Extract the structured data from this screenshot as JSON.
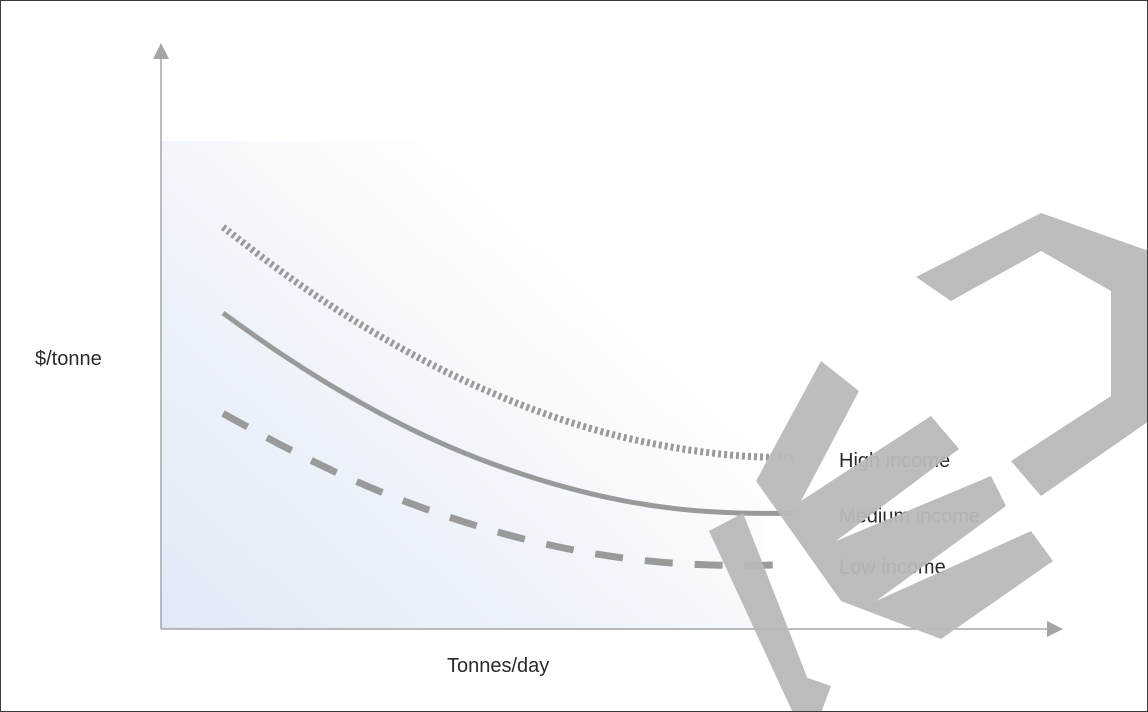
{
  "chart_data": {
    "type": "line",
    "xlabel": "Tonnes/day",
    "ylabel": "$/tonne",
    "xlim": [
      0,
      100
    ],
    "ylim": [
      0,
      100
    ],
    "grid": false,
    "legend": "inline-right",
    "x": [
      0,
      10,
      20,
      30,
      40,
      50,
      60,
      70,
      80,
      90,
      100
    ],
    "series": [
      {
        "name": "High income",
        "style": "dotted",
        "values": [
          82,
          72.9,
          64.7,
          57.5,
          51.2,
          45.9,
          41.5,
          38.1,
          35.7,
          34.2,
          33.7
        ]
      },
      {
        "name": "Medium income",
        "style": "solid",
        "values": [
          64,
          55.6,
          48.1,
          41.5,
          35.9,
          31.3,
          27.6,
          24.8,
          23.0,
          22.2,
          22.1
        ]
      },
      {
        "name": "Low income",
        "style": "dashed",
        "values": [
          43,
          36.5,
          30.6,
          25.5,
          21.2,
          17.6,
          14.8,
          12.8,
          11.6,
          11.2,
          11.4
        ]
      }
    ]
  },
  "colors": {
    "series_gray": "#9a9a9a",
    "axis": "#a5a5a5",
    "watermark": "#b9b9b9",
    "gradient_start": "#dfe9f6"
  }
}
